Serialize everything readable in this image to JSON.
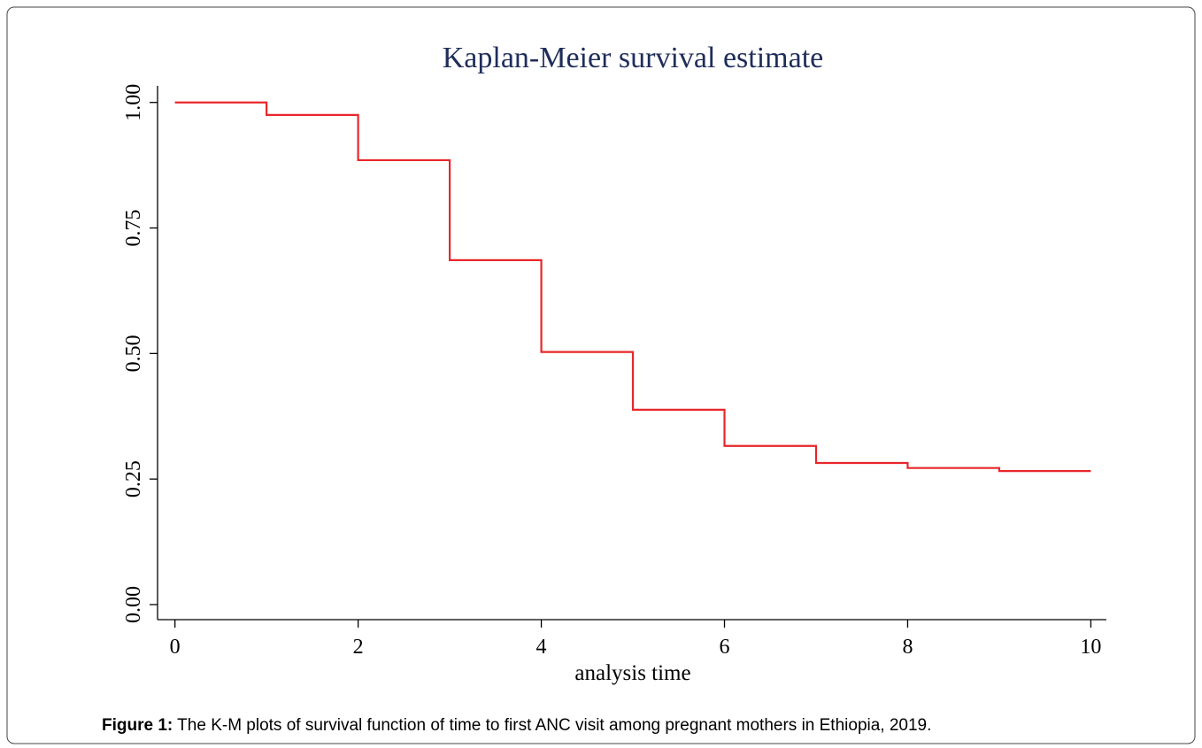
{
  "chart_data": {
    "type": "line",
    "step": "post",
    "title": "Kaplan-Meier survival estimate",
    "xlabel": "analysis time",
    "x": [
      0,
      1,
      2,
      3,
      4,
      5,
      6,
      7,
      8,
      9,
      10
    ],
    "series": [
      {
        "color": "#e8262a",
        "values": [
          1.0,
          0.975,
          0.885,
          0.686,
          0.503,
          0.388,
          0.316,
          0.282,
          0.272,
          0.266,
          0.266
        ]
      }
    ],
    "xlim": [
      -0.19,
      10.17
    ],
    "ylim": [
      -0.03,
      1.033
    ],
    "xticks": [
      0,
      2,
      4,
      6,
      8,
      10
    ],
    "yticks": [
      {
        "value": 0,
        "label": "0.00"
      },
      {
        "value": 0.25,
        "label": "0.25"
      },
      {
        "value": 0.5,
        "label": "0.50"
      },
      {
        "value": 0.75,
        "label": "0.75"
      },
      {
        "value": 1,
        "label": "1.00"
      }
    ],
    "grid": false
  },
  "caption": {
    "label": "Figure 1:",
    "text": "The K-M plots of survival function of time to first ANC visit among pregnant mothers in Ethiopia, 2019."
  }
}
